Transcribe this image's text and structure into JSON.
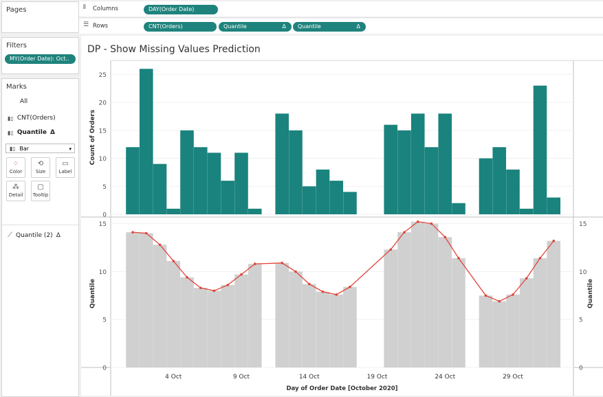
{
  "pages": {
    "title": "Pages"
  },
  "shelves": {
    "columns_label": "Columns",
    "rows_label": "Rows",
    "columns_pills": [
      "DAY(Order Date)"
    ],
    "rows_pills": [
      "CNT(Orders)",
      "Quantile",
      "Quantile"
    ],
    "delta": "Δ"
  },
  "filters": {
    "title": "Filters",
    "pill": "MY(Order Date): Oct.."
  },
  "marks": {
    "title": "Marks",
    "all": "All",
    "layer1": "CNT(Orders)",
    "layer2": "Quantile",
    "type": "Bar",
    "buttons": [
      "Color",
      "Size",
      "Label",
      "Detail",
      "Tooltip"
    ],
    "layer3": "Quantile (2)",
    "delta": "Δ"
  },
  "sheet": {
    "title": "DP - Show Missing Values Prediction"
  },
  "chart_data": [
    {
      "type": "bar",
      "color": "#1a837d",
      "x": [
        1,
        2,
        3,
        4,
        5,
        6,
        7,
        8,
        9,
        10,
        11,
        12,
        13,
        14,
        15,
        16,
        17,
        18,
        19,
        20,
        21,
        22,
        23,
        24,
        25,
        26,
        27,
        28,
        29,
        30,
        31,
        32
      ],
      "values": [
        12,
        26,
        9,
        1,
        15,
        12,
        11,
        6,
        11,
        1,
        null,
        18,
        15,
        5,
        8,
        6,
        4,
        null,
        null,
        16,
        15,
        18,
        12,
        18,
        2,
        null,
        10,
        12,
        8,
        1,
        23,
        3
      ],
      "ylabel": "Count of Orders",
      "yticks": [
        0,
        5,
        10,
        15,
        20,
        25
      ],
      "ylim": [
        0,
        27.5
      ]
    },
    {
      "type": "bar+line",
      "bar_color": "#d0d0d0",
      "line_color": "#e0443a",
      "x": [
        1,
        2,
        3,
        4,
        5,
        6,
        7,
        8,
        9,
        10,
        11,
        12,
        13,
        14,
        15,
        16,
        17,
        18,
        19,
        20,
        21,
        22,
        23,
        24,
        25,
        26,
        27,
        28,
        29,
        30,
        31,
        32
      ],
      "series": [
        {
          "values": [
            14.1,
            14.0,
            12.8,
            11.1,
            9.4,
            8.3,
            8.0,
            8.6,
            9.7,
            10.8,
            null,
            10.9,
            10.0,
            8.7,
            7.9,
            7.6,
            8.4,
            null,
            null,
            12.3,
            14.1,
            15.2,
            15.0,
            13.6,
            11.4,
            null,
            7.5,
            6.9,
            7.6,
            9.3,
            11.4,
            13.2
          ]
        }
      ],
      "ylabel": "Quantile",
      "y2label": "Quantile",
      "yticks": [
        0,
        5,
        10,
        15
      ],
      "ylim": [
        0,
        15.4
      ]
    }
  ],
  "x_axis": {
    "title": "Day of Order Date [October 2020]",
    "ticks": [
      {
        "day": 4,
        "label": "4 Oct"
      },
      {
        "day": 9,
        "label": "9 Oct"
      },
      {
        "day": 14,
        "label": "14 Oct"
      },
      {
        "day": 19,
        "label": "19 Oct"
      },
      {
        "day": 24,
        "label": "24 Oct"
      },
      {
        "day": 29,
        "label": "29 Oct"
      }
    ]
  }
}
